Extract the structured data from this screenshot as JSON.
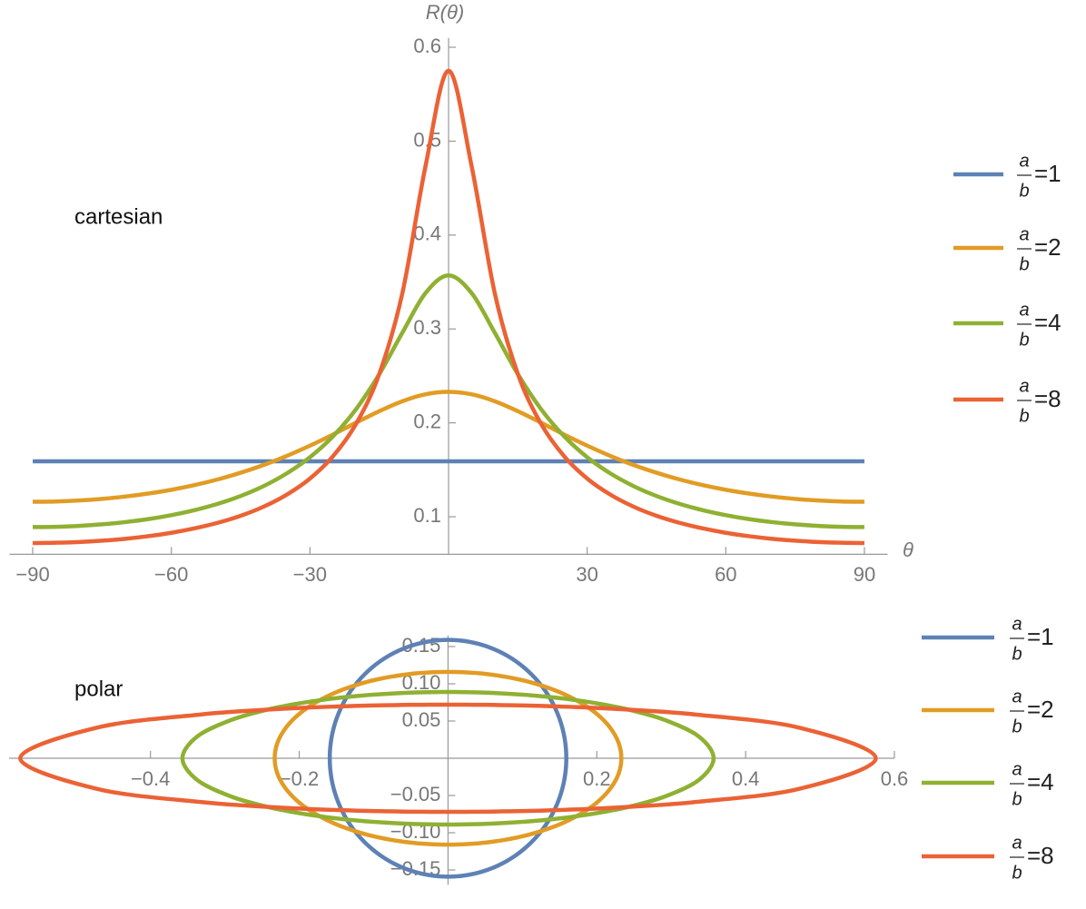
{
  "chart_data": [
    {
      "type": "line",
      "annotation": "cartesian",
      "xlabel": "θ",
      "ylabel": "R(θ)",
      "legend_fraction": {
        "numerator": "a",
        "denominator": "b"
      },
      "x": [
        -90,
        -85,
        -80,
        -75,
        -70,
        -65,
        -60,
        -55,
        -50,
        -45,
        -40,
        -35,
        -30,
        -25,
        -20,
        -15,
        -10,
        -5,
        0,
        5,
        10,
        15,
        20,
        25,
        30,
        35,
        40,
        45,
        50,
        55,
        60,
        65,
        70,
        75,
        80,
        85,
        90
      ],
      "series": [
        {
          "name": "=1",
          "color": "#5e81b5",
          "values": [
            0.159,
            0.159,
            0.159,
            0.159,
            0.159,
            0.159,
            0.159,
            0.159,
            0.159,
            0.159,
            0.159,
            0.159,
            0.159,
            0.159,
            0.159,
            0.159,
            0.159,
            0.159,
            0.159,
            0.159,
            0.159,
            0.159,
            0.159,
            0.159,
            0.159,
            0.159,
            0.159,
            0.159,
            0.159,
            0.159,
            0.159,
            0.159,
            0.159,
            0.159,
            0.159,
            0.159,
            0.159
          ]
        },
        {
          "name": "=2",
          "color": "#e19c24",
          "values": [
            0.116,
            0.1163,
            0.1173,
            0.119,
            0.1215,
            0.1247,
            0.1287,
            0.1337,
            0.1397,
            0.1469,
            0.1552,
            0.1648,
            0.1757,
            0.1876,
            0.2002,
            0.2124,
            0.223,
            0.2304,
            0.233,
            0.2304,
            0.223,
            0.2124,
            0.2002,
            0.1876,
            0.1757,
            0.1648,
            0.1552,
            0.1469,
            0.1397,
            0.1337,
            0.1287,
            0.1247,
            0.1215,
            0.119,
            0.1173,
            0.1163,
            0.116
          ]
        },
        {
          "name": "=4",
          "color": "#8fb032",
          "values": [
            0.089,
            0.0893,
            0.0903,
            0.0919,
            0.0943,
            0.0975,
            0.1017,
            0.107,
            0.1137,
            0.1221,
            0.1327,
            0.1462,
            0.1634,
            0.1857,
            0.2147,
            0.2518,
            0.296,
            0.3381,
            0.357,
            0.3381,
            0.296,
            0.2518,
            0.2147,
            0.1857,
            0.1634,
            0.1462,
            0.1327,
            0.1221,
            0.1137,
            0.107,
            0.1017,
            0.0975,
            0.0943,
            0.0919,
            0.0903,
            0.0893,
            0.089
          ]
        },
        {
          "name": "=8",
          "color": "#eb6235",
          "values": [
            0.072,
            0.0723,
            0.0731,
            0.0745,
            0.0765,
            0.0793,
            0.0829,
            0.0876,
            0.0935,
            0.101,
            0.1108,
            0.1236,
            0.1407,
            0.1645,
            0.1991,
            0.252,
            0.3381,
            0.4731,
            0.575,
            0.4731,
            0.3381,
            0.252,
            0.1991,
            0.1645,
            0.1407,
            0.1236,
            0.1108,
            0.101,
            0.0935,
            0.0876,
            0.0829,
            0.0793,
            0.0765,
            0.0745,
            0.0731,
            0.0723,
            0.072
          ]
        }
      ],
      "xlim": [
        -95,
        95
      ],
      "ylim": [
        0.06,
        0.61
      ],
      "xticks": [
        {
          "value": -90,
          "label": "−90"
        },
        {
          "value": -60,
          "label": "−60"
        },
        {
          "value": -30,
          "label": "−30"
        },
        30,
        60,
        90
      ],
      "yticks": [
        0.1,
        0.2,
        0.3,
        0.4,
        0.5,
        0.6
      ]
    },
    {
      "type": "polar",
      "annotation": "polar",
      "legend_fraction": {
        "numerator": "a",
        "denominator": "b"
      },
      "theta": [
        0,
        5,
        10,
        15,
        20,
        25,
        30,
        35,
        40,
        45,
        50,
        55,
        60,
        65,
        70,
        75,
        80,
        85,
        90,
        95,
        100,
        105,
        110,
        115,
        120,
        125,
        130,
        135,
        140,
        145,
        150,
        155,
        160,
        165,
        170,
        175,
        180,
        185,
        190,
        195,
        200,
        205,
        210,
        215,
        220,
        225,
        230,
        235,
        240,
        245,
        250,
        255,
        260,
        265,
        270,
        275,
        280,
        285,
        290,
        295,
        300,
        305,
        310,
        315,
        320,
        325,
        330,
        335,
        340,
        345,
        350,
        355,
        360
      ],
      "series": [
        {
          "name": "=1",
          "color": "#5e81b5",
          "values": [
            0.159,
            0.159,
            0.159,
            0.159,
            0.159,
            0.159,
            0.159,
            0.159,
            0.159,
            0.159,
            0.159,
            0.159,
            0.159,
            0.159,
            0.159,
            0.159,
            0.159,
            0.159,
            0.159,
            0.159,
            0.159,
            0.159,
            0.159,
            0.159,
            0.159,
            0.159,
            0.159,
            0.159,
            0.159,
            0.159,
            0.159,
            0.159,
            0.159,
            0.159,
            0.159,
            0.159,
            0.159,
            0.159,
            0.159,
            0.159,
            0.159,
            0.159,
            0.159,
            0.159,
            0.159,
            0.159,
            0.159,
            0.159,
            0.159,
            0.159,
            0.159,
            0.159,
            0.159,
            0.159,
            0.159,
            0.159,
            0.159,
            0.159,
            0.159,
            0.159,
            0.159,
            0.159,
            0.159,
            0.159,
            0.159,
            0.159,
            0.159,
            0.159,
            0.159,
            0.159,
            0.159,
            0.159,
            0.159
          ]
        },
        {
          "name": "=2",
          "color": "#e19c24",
          "values": [
            0.233,
            0.2304,
            0.223,
            0.2124,
            0.2002,
            0.1876,
            0.1757,
            0.1648,
            0.1552,
            0.1469,
            0.1397,
            0.1337,
            0.1287,
            0.1247,
            0.1215,
            0.119,
            0.1173,
            0.1163,
            0.116,
            0.1163,
            0.1173,
            0.119,
            0.1215,
            0.1247,
            0.1287,
            0.1337,
            0.1397,
            0.1469,
            0.1552,
            0.1648,
            0.1757,
            0.1876,
            0.2002,
            0.2124,
            0.223,
            0.2304,
            0.233,
            0.2304,
            0.223,
            0.2124,
            0.2002,
            0.1876,
            0.1757,
            0.1648,
            0.1552,
            0.1469,
            0.1397,
            0.1337,
            0.1287,
            0.1247,
            0.1215,
            0.119,
            0.1173,
            0.1163,
            0.116,
            0.1163,
            0.1173,
            0.119,
            0.1215,
            0.1247,
            0.1287,
            0.1337,
            0.1397,
            0.1469,
            0.1552,
            0.1648,
            0.1757,
            0.1876,
            0.2002,
            0.2124,
            0.223,
            0.2304,
            0.233
          ]
        },
        {
          "name": "=4",
          "color": "#8fb032",
          "values": [
            0.357,
            0.3381,
            0.296,
            0.2518,
            0.2147,
            0.1857,
            0.1634,
            0.1462,
            0.1327,
            0.1221,
            0.1137,
            0.107,
            0.1017,
            0.0975,
            0.0943,
            0.0919,
            0.0903,
            0.0893,
            0.089,
            0.0893,
            0.0903,
            0.0919,
            0.0943,
            0.0975,
            0.1017,
            0.107,
            0.1137,
            0.1221,
            0.1327,
            0.1462,
            0.1634,
            0.1857,
            0.2147,
            0.2518,
            0.296,
            0.3381,
            0.357,
            0.3381,
            0.296,
            0.2518,
            0.2147,
            0.1857,
            0.1634,
            0.1462,
            0.1327,
            0.1221,
            0.1137,
            0.107,
            0.1017,
            0.0975,
            0.0943,
            0.0919,
            0.0903,
            0.0893,
            0.089,
            0.0893,
            0.0903,
            0.0919,
            0.0943,
            0.0975,
            0.1017,
            0.107,
            0.1137,
            0.1221,
            0.1327,
            0.1462,
            0.1634,
            0.1857,
            0.2147,
            0.2518,
            0.296,
            0.3381,
            0.357
          ]
        },
        {
          "name": "=8",
          "color": "#eb6235",
          "values": [
            0.575,
            0.4731,
            0.3381,
            0.252,
            0.1991,
            0.1645,
            0.1407,
            0.1236,
            0.1108,
            0.101,
            0.0935,
            0.0876,
            0.0829,
            0.0793,
            0.0765,
            0.0745,
            0.0731,
            0.0723,
            0.072,
            0.0723,
            0.0731,
            0.0745,
            0.0765,
            0.0793,
            0.0829,
            0.0876,
            0.0935,
            0.101,
            0.1108,
            0.1236,
            0.1407,
            0.1645,
            0.1991,
            0.252,
            0.3381,
            0.4731,
            0.575,
            0.4731,
            0.3381,
            0.252,
            0.1991,
            0.1645,
            0.1407,
            0.1236,
            0.1108,
            0.101,
            0.0935,
            0.0876,
            0.0829,
            0.0793,
            0.0765,
            0.0745,
            0.0731,
            0.0723,
            0.072,
            0.0723,
            0.0731,
            0.0745,
            0.0765,
            0.0793,
            0.0829,
            0.0876,
            0.0935,
            0.101,
            0.1108,
            0.1236,
            0.1407,
            0.1645,
            0.1991,
            0.252,
            0.3381,
            0.4731,
            0.575
          ]
        }
      ],
      "xlim": [
        -0.59,
        0.6
      ],
      "ylim": [
        -0.17,
        0.165
      ],
      "xticks": [
        {
          "value": -0.4,
          "label": "−0.4"
        },
        {
          "value": -0.2,
          "label": "−0.2"
        },
        0.2,
        0.4,
        0.6
      ],
      "yticks": [
        {
          "value": -0.15,
          "label": "−0.15"
        },
        {
          "value": -0.1,
          "label": "−0.10"
        },
        {
          "value": -0.05,
          "label": "−0.05"
        },
        0.05,
        {
          "value": 0.1,
          "label": "0.10"
        },
        0.15
      ]
    }
  ]
}
